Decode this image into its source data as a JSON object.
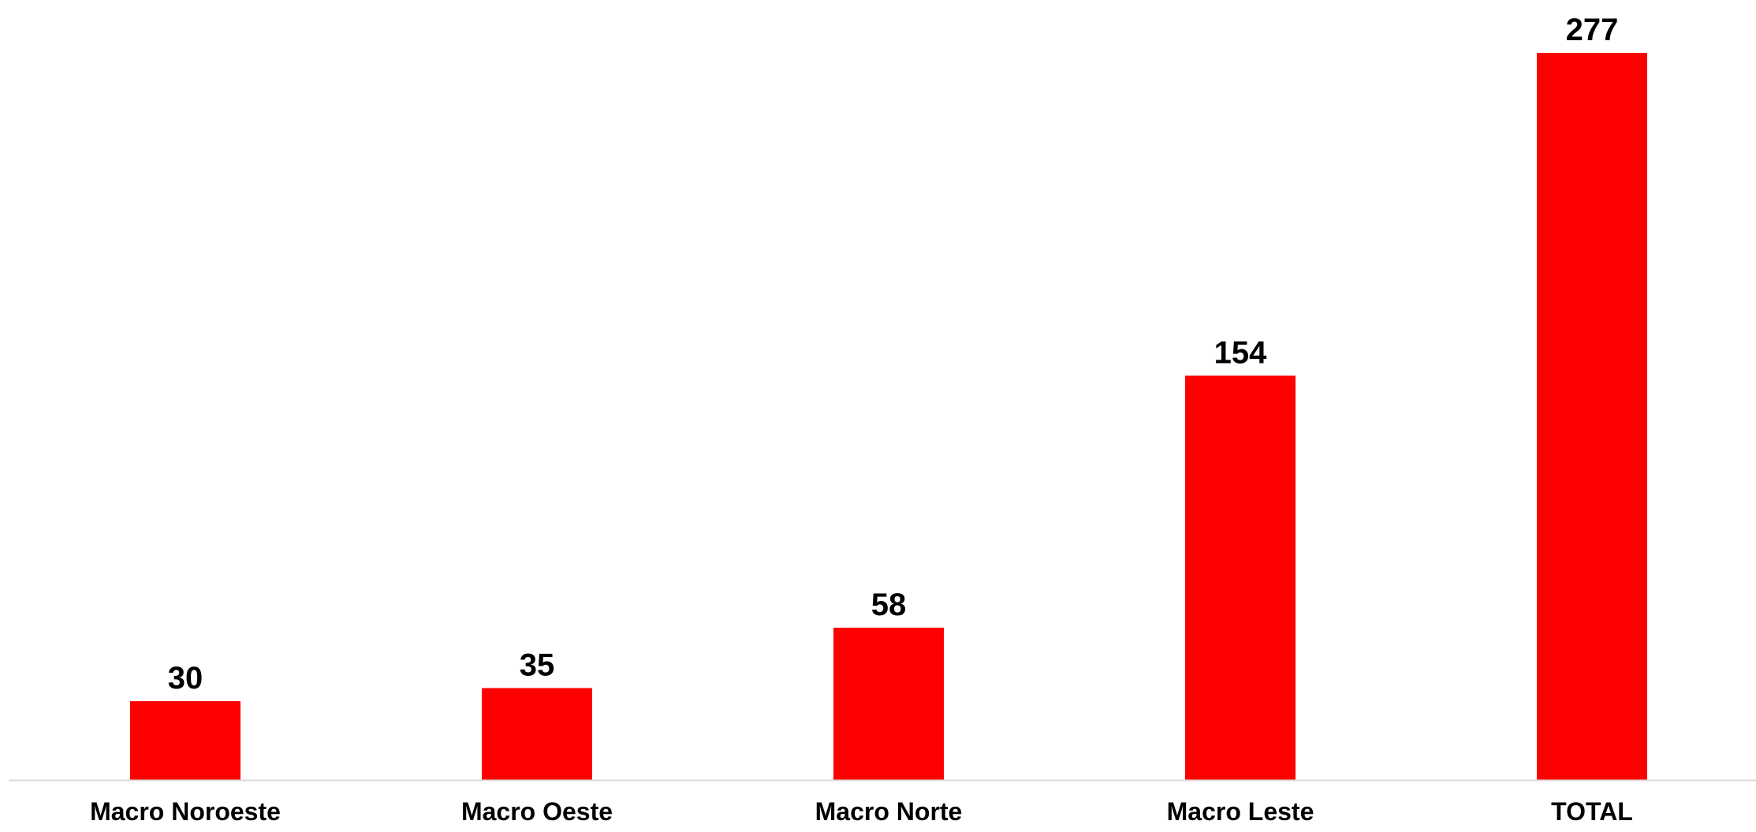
{
  "chart_data": {
    "type": "bar",
    "categories": [
      "Macro Noroeste",
      "Macro Oeste",
      "Macro Norte",
      "Macro Leste",
      "TOTAL"
    ],
    "values": [
      30,
      35,
      58,
      154,
      277
    ],
    "data_labels": [
      "30",
      "35",
      "58",
      "154",
      "277"
    ],
    "ylim": [
      0,
      277
    ],
    "grid": false,
    "legend": "none",
    "bar_color": "#ff0000",
    "axis_color": "#d9d9d9"
  }
}
